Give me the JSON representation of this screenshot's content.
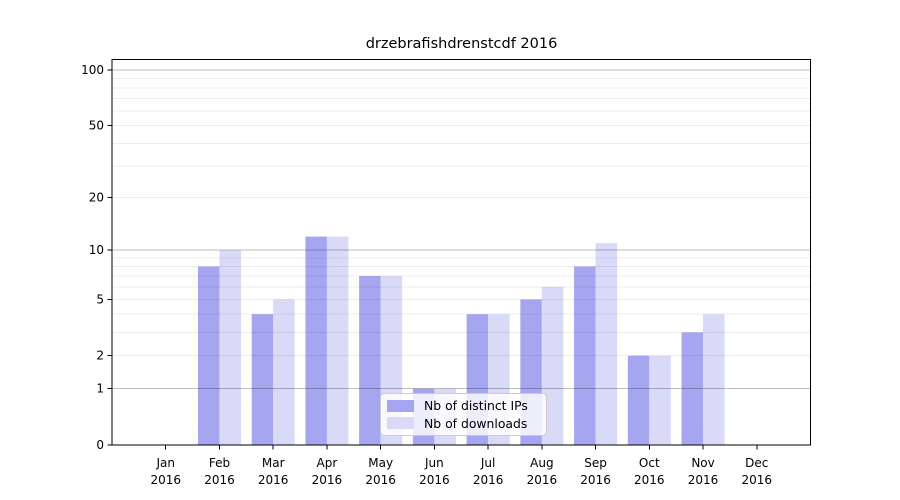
{
  "chart_data": {
    "type": "bar",
    "title": "drzebrafishdrenstcdf 2016",
    "categories": [
      "Jan 2016",
      "Feb 2016",
      "Mar 2016",
      "Apr 2016",
      "May 2016",
      "Jun 2016",
      "Jul 2016",
      "Aug 2016",
      "Sep 2016",
      "Oct 2016",
      "Nov 2016",
      "Dec 2016"
    ],
    "series": [
      {
        "name": "Nb of distinct IPs",
        "color": "#a5a5f0",
        "values": [
          0,
          8,
          4,
          12,
          7,
          1,
          4,
          5,
          8,
          2,
          3,
          0
        ]
      },
      {
        "name": "Nb of downloads",
        "color": "#d9d9f8",
        "values": [
          0,
          10,
          5,
          12,
          7,
          1,
          4,
          6,
          11,
          2,
          4,
          0
        ]
      }
    ],
    "xlabel": "",
    "ylabel": "",
    "yscale": "log1p",
    "ylim": [
      0,
      114
    ],
    "yticks": [
      0,
      1,
      2,
      5,
      10,
      20,
      50,
      100
    ],
    "grid": {
      "major": [
        1,
        10,
        100
      ],
      "minor": [
        2,
        3,
        4,
        5,
        6,
        7,
        8,
        9,
        20,
        30,
        40,
        50,
        60,
        70,
        80,
        90
      ]
    },
    "legend": {
      "position": "lower center",
      "entries": [
        "Nb of distinct IPs",
        "Nb of downloads"
      ]
    }
  }
}
